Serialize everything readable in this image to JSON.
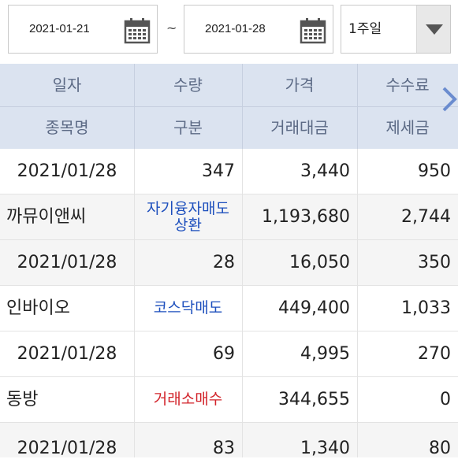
{
  "filter": {
    "start_date": "2021-01-21",
    "end_date": "2021-01-28",
    "separator": "~",
    "period_selected": "1주일"
  },
  "header": {
    "row1": [
      "일자",
      "수량",
      "가격",
      "수수료"
    ],
    "row2": [
      "종목명",
      "구분",
      "거래대금",
      "제세금"
    ]
  },
  "rows": [
    {
      "date": "2021/01/28",
      "qty": "347",
      "price": "3,440",
      "fee": "950",
      "name": "까뮤이앤씨",
      "type_line1": "자기융자매도",
      "type_line2": "상환",
      "type_color": "#1d4fbd",
      "amount": "1,193,680",
      "tax": "2,744"
    },
    {
      "date": "2021/01/28",
      "qty": "28",
      "price": "16,050",
      "fee": "350",
      "name": "인바이오",
      "type_line1": "코스닥매도",
      "type_line2": "",
      "type_color": "#1d4fbd",
      "amount": "449,400",
      "tax": "1,033"
    },
    {
      "date": "2021/01/28",
      "qty": "69",
      "price": "4,995",
      "fee": "270",
      "name": "동방",
      "type_line1": "거래소매수",
      "type_line2": "",
      "type_color": "#d2232a",
      "amount": "344,655",
      "tax": "0"
    },
    {
      "date": "2021/01/28",
      "qty": "83",
      "price": "1,340",
      "fee": "80"
    }
  ],
  "colors": {
    "header_bg": "#dbe3f0",
    "header_text": "#5c6a85",
    "sell_blue": "#1d4fbd",
    "buy_red": "#d2232a",
    "accent_arrow": "#6b8ccf"
  },
  "icons": [
    "calendar-icon",
    "dropdown-arrow-icon",
    "chevron-right-icon"
  ]
}
